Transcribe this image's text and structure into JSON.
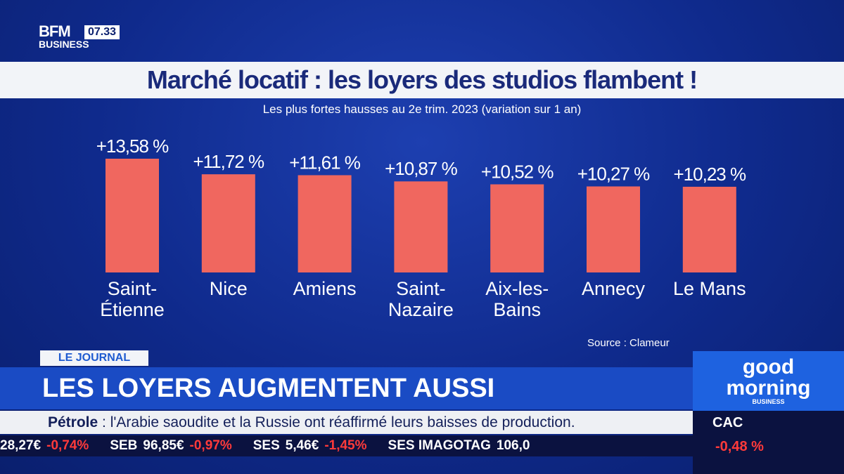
{
  "channel": {
    "logo_top": "BFM",
    "logo_bottom": "BUSINESS",
    "time": "07.33"
  },
  "chart_data": {
    "type": "bar",
    "title": "Marché locatif : les loyers des studios flambent !",
    "subtitle": "Les plus fortes hausses au 2e trim. 2023 (variation sur 1 an)",
    "categories": [
      "Saint-\nÉtienne",
      "Nice",
      "Amiens",
      "Saint-\nNazaire",
      "Aix-les-\nBains",
      "Annecy",
      "Le Mans"
    ],
    "values": [
      13.58,
      11.72,
      11.61,
      10.87,
      10.52,
      10.27,
      10.23
    ],
    "value_labels": [
      "+13,58 %",
      "+11,72 %",
      "+11,61 %",
      "+10,87 %",
      "+10,52 %",
      "+10,27 %",
      "+10,23 %"
    ],
    "color": "#f0675f",
    "source": "Source : Clameur"
  },
  "lower_third": {
    "tag": "LE JOURNAL",
    "headline": "LES LOYERS AUGMENTENT AUSSI",
    "news_label": "Pétrole",
    "news_text": ": l'Arabie saoudite et la Russie ont réaffirmé leurs baisses de production."
  },
  "ticker": [
    {
      "name": "",
      "price": "28,27€",
      "change": "-0,74%"
    },
    {
      "name": "SEB",
      "price": "96,85€",
      "change": "-0,97%"
    },
    {
      "name": "SES",
      "price": "5,46€",
      "change": "-1,45%"
    },
    {
      "name": "SES IMAGOTAG",
      "price": "106,0",
      "change": ""
    }
  ],
  "show": {
    "line1": "good",
    "line2": "morning",
    "line3": "BUSINESS"
  },
  "index": {
    "name": "CAC",
    "change": "-0,48 %"
  }
}
